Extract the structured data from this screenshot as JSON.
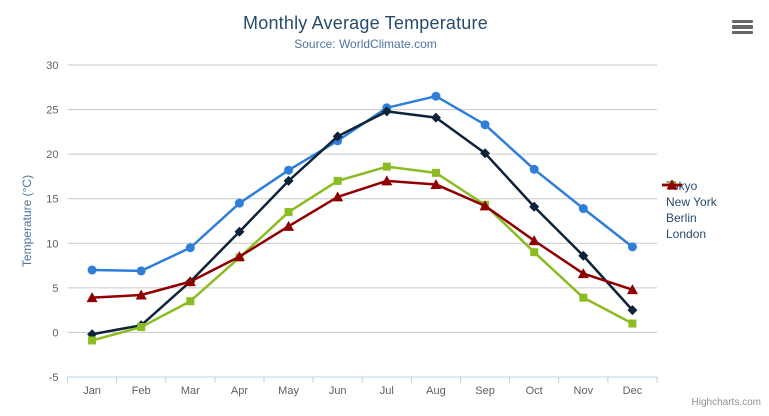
{
  "chart": {
    "title": "Monthly Average Temperature",
    "subtitle": "Source: WorldClimate.com",
    "y_axis_title": "Temperature (°C)",
    "credits": "Highcharts.com",
    "export_icon": "hamburger-icon"
  },
  "chart_data": {
    "type": "line",
    "title": "Monthly Average Temperature",
    "subtitle": "Source: WorldClimate.com",
    "xlabel": "",
    "ylabel": "Temperature (°C)",
    "ylim": [
      -5,
      30
    ],
    "ytick_step": 5,
    "grid": true,
    "legend_position": "right",
    "categories": [
      "Jan",
      "Feb",
      "Mar",
      "Apr",
      "May",
      "Jun",
      "Jul",
      "Aug",
      "Sep",
      "Oct",
      "Nov",
      "Dec"
    ],
    "series": [
      {
        "name": "Tokyo",
        "color": "#2f7ed8",
        "marker": "circle",
        "values": [
          7.0,
          6.9,
          9.5,
          14.5,
          18.2,
          21.5,
          25.2,
          26.5,
          23.3,
          18.3,
          13.9,
          9.6
        ]
      },
      {
        "name": "New York",
        "color": "#0d233a",
        "marker": "diamond",
        "values": [
          -0.2,
          0.8,
          5.7,
          11.3,
          17.0,
          22.0,
          24.8,
          24.1,
          20.1,
          14.1,
          8.6,
          2.5
        ]
      },
      {
        "name": "Berlin",
        "color": "#8bbc21",
        "marker": "square",
        "values": [
          -0.9,
          0.6,
          3.5,
          8.4,
          13.5,
          17.0,
          18.6,
          17.9,
          14.3,
          9.0,
          3.9,
          1.0
        ]
      },
      {
        "name": "London",
        "color": "#910000",
        "marker": "triangle",
        "values": [
          3.9,
          4.2,
          5.7,
          8.5,
          11.9,
          15.2,
          17.0,
          16.6,
          14.2,
          10.3,
          6.6,
          4.8
        ]
      }
    ]
  },
  "colors": {
    "title": "#274b6d",
    "subtitle": "#4d759e",
    "axis_label": "#606060",
    "axis_line": "#c0d0e0",
    "gridline": "#c8c8c8",
    "legend_text": "#274b6d",
    "credits": "#909090"
  }
}
